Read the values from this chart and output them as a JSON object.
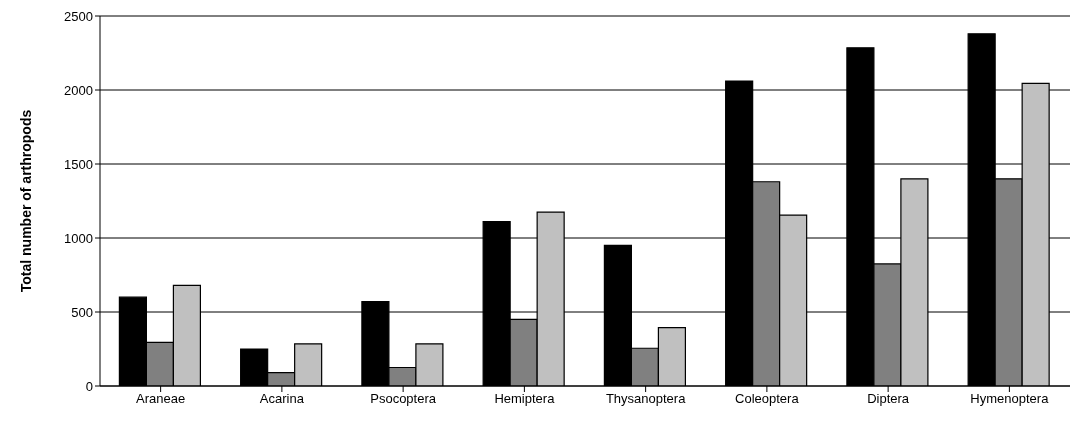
{
  "chart_data": {
    "type": "bar",
    "ylabel": "Total number of arthropods",
    "categories": [
      "Araneae",
      "Acarina",
      "Psocoptera",
      "Hemiptera",
      "Thysanoptera",
      "Coleoptera",
      "Diptera",
      "Hymenoptera"
    ],
    "series": [
      {
        "color": "#000000",
        "values": [
          600,
          250,
          570,
          1110,
          950,
          2060,
          2285,
          2380
        ]
      },
      {
        "color": "#808080",
        "values": [
          295,
          90,
          125,
          450,
          255,
          1380,
          825,
          1400
        ]
      },
      {
        "color": "#c0c0c0",
        "values": [
          680,
          285,
          285,
          1175,
          395,
          1155,
          1400,
          2045
        ]
      }
    ],
    "ylim": [
      0,
      2500
    ],
    "yticks": [
      0,
      500,
      1000,
      1500,
      2000,
      2500
    ],
    "grid": "y",
    "legend": false
  }
}
